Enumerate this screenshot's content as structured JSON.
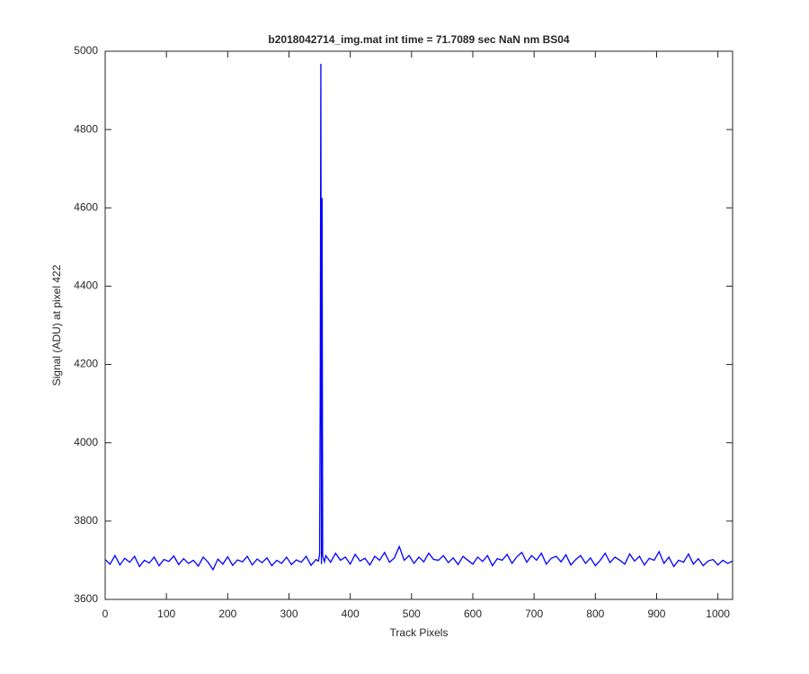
{
  "chart_data": {
    "type": "line",
    "title": "b2018042714_img.mat int time = 71.7089 sec  NaN nm BS04",
    "xlabel": "Track Pixels",
    "ylabel": "Signal (ADU) at pixel 422",
    "x": [
      0,
      8,
      16,
      24,
      32,
      40,
      48,
      56,
      64,
      72,
      80,
      88,
      96,
      104,
      112,
      120,
      128,
      136,
      144,
      152,
      160,
      168,
      176,
      184,
      192,
      200,
      208,
      216,
      224,
      232,
      240,
      248,
      256,
      264,
      272,
      280,
      288,
      296,
      304,
      312,
      320,
      328,
      336,
      344,
      348,
      350,
      351,
      352,
      353,
      354,
      355,
      356,
      358,
      360,
      368,
      376,
      384,
      392,
      400,
      408,
      416,
      424,
      432,
      440,
      448,
      456,
      464,
      472,
      480,
      488,
      496,
      504,
      512,
      520,
      528,
      536,
      544,
      552,
      560,
      568,
      576,
      584,
      592,
      600,
      608,
      616,
      624,
      632,
      640,
      648,
      656,
      664,
      672,
      680,
      688,
      696,
      704,
      712,
      720,
      728,
      736,
      744,
      752,
      760,
      768,
      776,
      784,
      792,
      800,
      808,
      816,
      824,
      832,
      840,
      848,
      856,
      864,
      872,
      880,
      888,
      896,
      904,
      912,
      920,
      928,
      936,
      944,
      952,
      960,
      968,
      976,
      984,
      992,
      1000,
      1008,
      1016,
      1024
    ],
    "series": [
      {
        "color": "#0000ff",
        "values": [
          3702,
          3690,
          3712,
          3688,
          3705,
          3695,
          3710,
          3684,
          3700,
          3693,
          3708,
          3686,
          3702,
          3697,
          3711,
          3689,
          3704,
          3692,
          3700,
          3685,
          3708,
          3695,
          3676,
          3703,
          3690,
          3709,
          3687,
          3701,
          3696,
          3710,
          3688,
          3703,
          3694,
          3706,
          3686,
          3700,
          3692,
          3708,
          3689,
          3701,
          3695,
          3710,
          3687,
          3702,
          3698,
          3715,
          4135,
          4968,
          3690,
          4625,
          3712,
          3705,
          3696,
          3712,
          3695,
          3718,
          3700,
          3708,
          3690,
          3715,
          3698,
          3705,
          3688,
          3710,
          3700,
          3720,
          3695,
          3706,
          3735,
          3700,
          3712,
          3692,
          3708,
          3696,
          3718,
          3702,
          3700,
          3712,
          3694,
          3706,
          3689,
          3710,
          3700,
          3690,
          3708,
          3697,
          3712,
          3686,
          3704,
          3700,
          3715,
          3692,
          3709,
          3720,
          3695,
          3712,
          3700,
          3718,
          3690,
          3705,
          3710,
          3696,
          3714,
          3688,
          3702,
          3712,
          3692,
          3706,
          3686,
          3700,
          3718,
          3694,
          3708,
          3700,
          3690,
          3716,
          3698,
          3710,
          3688,
          3705,
          3700,
          3722,
          3692,
          3708,
          3684,
          3700,
          3695,
          3716,
          3690,
          3704,
          3686,
          3698,
          3702,
          3688,
          3700,
          3692,
          3698
        ]
      }
    ],
    "xlim": [
      0,
      1024
    ],
    "ylim": [
      3600,
      5000
    ],
    "xticks": [
      0,
      100,
      200,
      300,
      400,
      500,
      600,
      700,
      800,
      900,
      1000
    ],
    "yticks": [
      3600,
      3800,
      4000,
      4200,
      4400,
      4600,
      4800,
      5000
    ],
    "grid": false
  }
}
